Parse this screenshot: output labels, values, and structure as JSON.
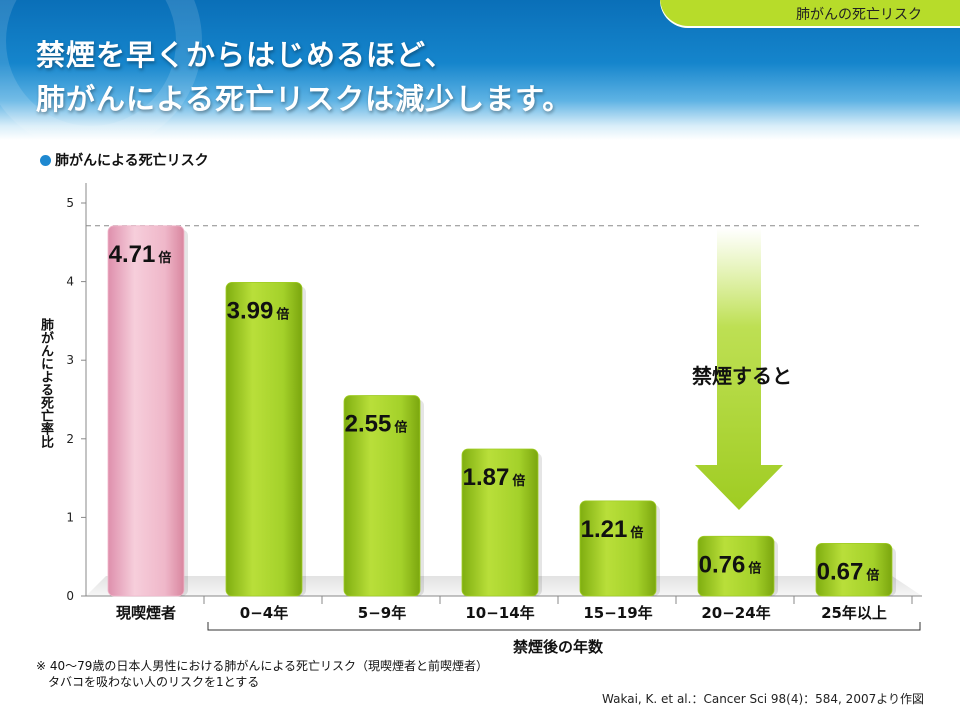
{
  "header": {
    "tag": "肺がんの死亡リスク",
    "title_line1": "禁煙を早くからはじめるほど、",
    "title_line2": "肺がんによる死亡リスクは減少します。"
  },
  "chart_data": {
    "type": "bar",
    "title": "肺がんによる死亡リスク",
    "ylabel": "肺がんによる死亡率比",
    "xlabel": "禁煙後の年数",
    "ylim": [
      0,
      5
    ],
    "yticks": [
      "0",
      "1",
      "2",
      "3",
      "4",
      "5"
    ],
    "categories": [
      "現喫煙者",
      "0−4年",
      "5−9年",
      "10−14年",
      "15−19年",
      "20−24年",
      "25年以上"
    ],
    "values": [
      4.71,
      3.99,
      2.55,
      1.87,
      1.21,
      0.76,
      0.67
    ],
    "value_labels": [
      "4.71",
      "3.99",
      "2.55",
      "1.87",
      "1.21",
      "0.76",
      "0.67"
    ],
    "value_unit": "倍",
    "reference_line": 4.71,
    "annotation": "禁煙すると",
    "colors": {
      "current_smoker": "#f0b8cb",
      "quit": "#9fcc22",
      "accent_blue": "#1e88d0"
    },
    "grid": false
  },
  "notes": {
    "line1": "※ 40〜79歳の日本人男性における肺がんによる死亡リスク（現喫煙者と前喫煙者）",
    "line2": "タバコを吸わない人のリスクを1とする"
  },
  "source": "Wakai, K. et al.：Cancer Sci 98(4)：584, 2007より作図"
}
